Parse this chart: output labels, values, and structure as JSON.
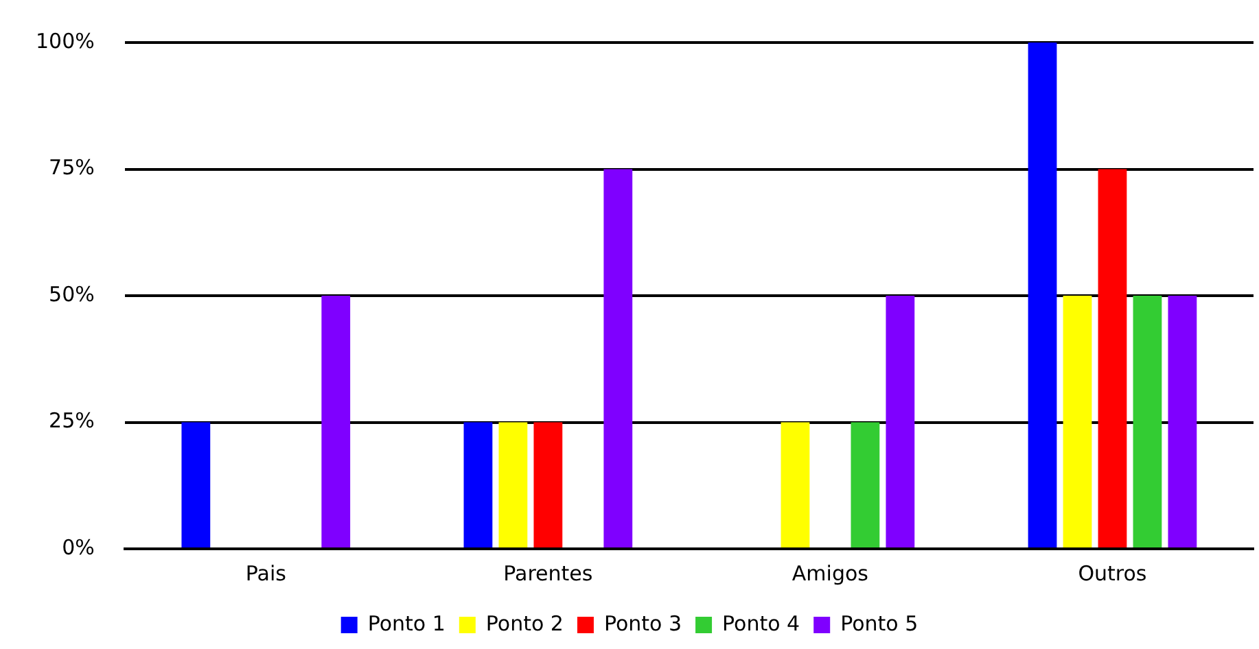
{
  "chart_data": {
    "type": "bar",
    "categories": [
      "Pais",
      "Parentes",
      "Amigos",
      "Outros"
    ],
    "series": [
      {
        "name": "Ponto 1",
        "color": "#0000ff",
        "values": [
          25,
          25,
          0,
          100
        ]
      },
      {
        "name": "Ponto 2",
        "color": "#ffff00",
        "values": [
          0,
          25,
          25,
          50
        ]
      },
      {
        "name": "Ponto 3",
        "color": "#ff0000",
        "values": [
          0,
          25,
          0,
          75
        ]
      },
      {
        "name": "Ponto 4",
        "color": "#33cc33",
        "values": [
          0,
          0,
          25,
          50
        ]
      },
      {
        "name": "Ponto 5",
        "color": "#7f00ff",
        "values": [
          50,
          75,
          50,
          50
        ]
      }
    ],
    "ylim": [
      0,
      100
    ],
    "yticks": [
      {
        "value": 0,
        "label": "0%"
      },
      {
        "value": 25,
        "label": "25%"
      },
      {
        "value": 50,
        "label": "50%"
      },
      {
        "value": 75,
        "label": "75%"
      },
      {
        "value": 100,
        "label": "100%"
      }
    ],
    "grid": "y",
    "legend": "bottom"
  }
}
